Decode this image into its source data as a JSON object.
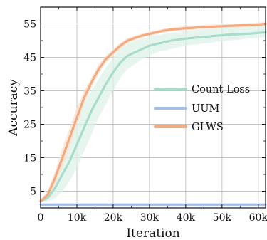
{
  "chart_data": {
    "type": "line",
    "title": "",
    "xlabel": "Iteration",
    "ylabel": "Accuracy",
    "xlim": [
      0,
      62000
    ],
    "ylim": [
      0,
      60
    ],
    "xticks": [
      {
        "value": 0,
        "label": "0"
      },
      {
        "value": 10000,
        "label": "10k"
      },
      {
        "value": 20000,
        "label": "20k"
      },
      {
        "value": 30000,
        "label": "30k"
      },
      {
        "value": 40000,
        "label": "40k"
      },
      {
        "value": 50000,
        "label": "50k"
      },
      {
        "value": 60000,
        "label": "60k"
      }
    ],
    "yticks": [
      {
        "value": 5,
        "label": "5"
      },
      {
        "value": 15,
        "label": "15"
      },
      {
        "value": 25,
        "label": "25"
      },
      {
        "value": 35,
        "label": "35"
      },
      {
        "value": 45,
        "label": "45"
      },
      {
        "value": 55,
        "label": "55"
      }
    ],
    "grid": true,
    "legend_position": "center-right",
    "series": [
      {
        "name": "Count Loss",
        "color": "#a8dccb",
        "band_color": "#dff1ea",
        "x": [
          0,
          2000,
          4000,
          6000,
          8000,
          10000,
          12000,
          14000,
          16000,
          18000,
          20000,
          22000,
          24000,
          26000,
          28000,
          30000,
          32000,
          34000,
          36000,
          38000,
          40000,
          42000,
          44000,
          46000,
          48000,
          50000,
          52000,
          54000,
          56000,
          58000,
          60000,
          62000
        ],
        "y": [
          2,
          3,
          6,
          10,
          14,
          19,
          24,
          29,
          33,
          37,
          40.5,
          43.5,
          45.5,
          46.5,
          47.5,
          48.5,
          49,
          49.5,
          50,
          50.3,
          50.6,
          50.8,
          51,
          51.2,
          51.4,
          51.6,
          51.8,
          51.9,
          52,
          52.1,
          52.3,
          52.5
        ],
        "lower": [
          2,
          2,
          3,
          5,
          8,
          12,
          17,
          22,
          27,
          31,
          35,
          39,
          41.5,
          43,
          44.5,
          45.5,
          46.5,
          47,
          47.5,
          48,
          48.5,
          48.8,
          49,
          49.3,
          49.6,
          49.8,
          50,
          50.2,
          50.4,
          50.6,
          50.8,
          51
        ],
        "upper": [
          2.5,
          4.5,
          9,
          14,
          20,
          26,
          31,
          35,
          38.5,
          42,
          45,
          47.5,
          49,
          50,
          50.6,
          51.2,
          51.6,
          52,
          52.3,
          52.6,
          52.9,
          53.1,
          53.3,
          53.5,
          53.7,
          53.9,
          54.1,
          54.3,
          54.4,
          54.5,
          54.6,
          54.8
        ]
      },
      {
        "name": "UUM",
        "color": "#a4bce8",
        "x": [
          0,
          62000
        ],
        "y": [
          1,
          1
        ]
      },
      {
        "name": "GLWS",
        "color": "#f2aa7e",
        "band_color": "#fbe1d2",
        "x": [
          0,
          2000,
          4000,
          6000,
          8000,
          10000,
          12000,
          14000,
          16000,
          18000,
          20000,
          22000,
          24000,
          26000,
          28000,
          30000,
          32000,
          34000,
          36000,
          38000,
          40000,
          42000,
          44000,
          46000,
          48000,
          50000,
          52000,
          54000,
          56000,
          58000,
          60000,
          62000
        ],
        "y": [
          2,
          4,
          9,
          15,
          21,
          27,
          33,
          37.5,
          41.5,
          44.5,
          46.5,
          48.5,
          50,
          50.8,
          51.5,
          52,
          52.5,
          53,
          53.3,
          53.5,
          53.7,
          53.8,
          54,
          54.1,
          54.2,
          54.3,
          54.4,
          54.5,
          54.6,
          54.7,
          54.8,
          55
        ],
        "lower": [
          2,
          3,
          7,
          12,
          18,
          24.5,
          31,
          36,
          40,
          43.5,
          45.5,
          47.5,
          49.2,
          50.1,
          50.9,
          51.4,
          51.9,
          52.4,
          52.7,
          52.9,
          53.1,
          53.2,
          53.4,
          53.5,
          53.6,
          53.7,
          53.8,
          53.9,
          54,
          54.1,
          54.2,
          54.4
        ],
        "upper": [
          2.5,
          5,
          11,
          18,
          24,
          30,
          35,
          39,
          43,
          45.5,
          47.5,
          49.3,
          50.8,
          51.5,
          52.1,
          52.6,
          53.1,
          53.6,
          53.9,
          54.1,
          54.3,
          54.4,
          54.6,
          54.7,
          54.8,
          54.9,
          55,
          55.1,
          55.2,
          55.3,
          55.4,
          55.6
        ]
      }
    ]
  }
}
